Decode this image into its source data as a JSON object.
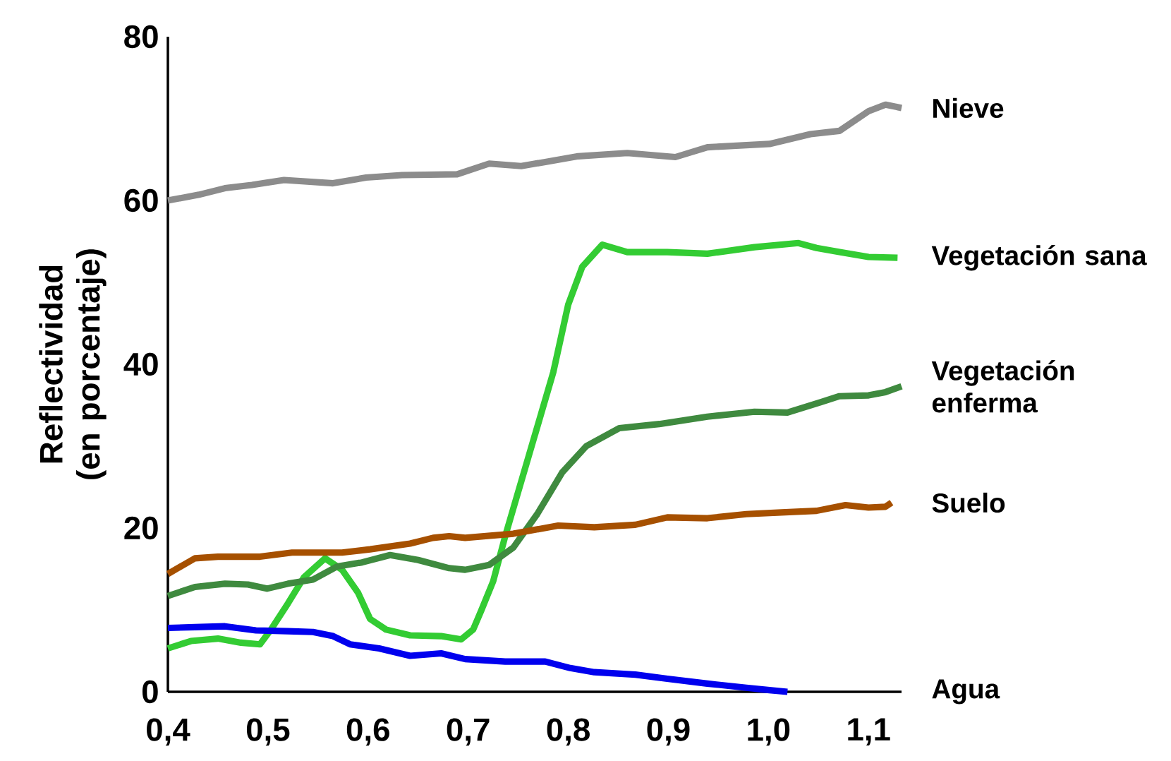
{
  "chart_data": {
    "type": "line",
    "ylabel": "Reflectividad (en porcentaje)",
    "xlim": [
      0.4,
      1.133
    ],
    "ylim": [
      0,
      80
    ],
    "xticks": [
      {
        "value": 0.4,
        "label": "0,4"
      },
      {
        "value": 0.5,
        "label": "0,5"
      },
      {
        "value": 0.6,
        "label": "0,6"
      },
      {
        "value": 0.7,
        "label": "0,7"
      },
      {
        "value": 0.8,
        "label": "0,8"
      },
      {
        "value": 0.9,
        "label": "0,9"
      },
      {
        "value": 1.0,
        "label": "1,0"
      },
      {
        "value": 1.1,
        "label": "1,1"
      }
    ],
    "yticks": [
      0,
      20,
      40,
      60,
      80
    ],
    "series": [
      {
        "name": "Nieve",
        "color": "#8c8c8c",
        "x": [
          0.4,
          0.431,
          0.457,
          0.484,
          0.516,
          0.565,
          0.598,
          0.634,
          0.689,
          0.721,
          0.753,
          0.777,
          0.81,
          0.859,
          0.907,
          0.939,
          1.001,
          1.042,
          1.071,
          1.1,
          1.117,
          1.133
        ],
        "values": [
          60,
          60.7,
          61.5,
          61.9,
          62.5,
          62.1,
          62.8,
          63.1,
          63.2,
          64.5,
          64.2,
          64.7,
          65.4,
          65.8,
          65.3,
          66.5,
          66.9,
          68.1,
          68.5,
          70.9,
          71.7,
          71.3
        ]
      },
      {
        "name": "Vegetación sana",
        "color": "#33cc33",
        "x": [
          0.4,
          0.423,
          0.45,
          0.473,
          0.492,
          0.503,
          0.52,
          0.536,
          0.557,
          0.574,
          0.59,
          0.602,
          0.618,
          0.642,
          0.673,
          0.693,
          0.705,
          0.713,
          0.725,
          0.737,
          0.761,
          0.785,
          0.8,
          0.814,
          0.834,
          0.859,
          0.899,
          0.939,
          0.986,
          1.03,
          1.048,
          1.071,
          1.1,
          1.129
        ],
        "values": [
          5.3,
          6.2,
          6.5,
          6.0,
          5.8,
          7.6,
          10.8,
          14,
          16.3,
          14.9,
          12.1,
          8.9,
          7.6,
          6.9,
          6.8,
          6.4,
          7.6,
          9.9,
          13.5,
          19,
          29,
          39,
          47.3,
          51.9,
          54.6,
          53.7,
          53.7,
          53.5,
          54.3,
          54.8,
          54.2,
          53.7,
          53.1,
          53.0
        ]
      },
      {
        "name": "Vegetación enferma",
        "color": "#3f8a3f",
        "x": [
          0.4,
          0.427,
          0.457,
          0.48,
          0.499,
          0.52,
          0.545,
          0.569,
          0.594,
          0.622,
          0.65,
          0.681,
          0.697,
          0.721,
          0.745,
          0.769,
          0.794,
          0.818,
          0.851,
          0.891,
          0.939,
          0.986,
          1.019,
          1.053,
          1.071,
          1.1,
          1.117,
          1.133
        ],
        "values": [
          11.7,
          12.8,
          13.2,
          13.1,
          12.6,
          13.2,
          13.7,
          15.3,
          15.8,
          16.7,
          16.1,
          15.1,
          14.9,
          15.5,
          17.6,
          21.7,
          26.8,
          30,
          32.2,
          32.7,
          33.6,
          34.2,
          34.1,
          35.4,
          36.1,
          36.2,
          36.6,
          37.3
        ]
      },
      {
        "name": "Suelo",
        "color": "#a65000",
        "x": [
          0.4,
          0.427,
          0.45,
          0.492,
          0.524,
          0.574,
          0.602,
          0.642,
          0.665,
          0.681,
          0.697,
          0.745,
          0.79,
          0.826,
          0.867,
          0.899,
          0.939,
          0.978,
          1.013,
          1.048,
          1.077,
          1.1,
          1.117,
          1.123
        ],
        "values": [
          14.4,
          16.3,
          16.5,
          16.5,
          17.0,
          17.0,
          17.4,
          18.1,
          18.8,
          19.0,
          18.8,
          19.3,
          20.3,
          20.1,
          20.4,
          21.3,
          21.2,
          21.7,
          21.9,
          22.1,
          22.8,
          22.5,
          22.6,
          23.1
        ]
      },
      {
        "name": "Agua",
        "color": "#0000ee",
        "x": [
          0.4,
          0.427,
          0.457,
          0.488,
          0.52,
          0.545,
          0.565,
          0.582,
          0.611,
          0.642,
          0.673,
          0.697,
          0.737,
          0.777,
          0.802,
          0.826,
          0.867,
          0.899,
          0.939,
          0.978,
          1.001,
          1.019
        ],
        "values": [
          7.8,
          7.9,
          8.0,
          7.5,
          7.4,
          7.3,
          6.8,
          5.8,
          5.3,
          4.4,
          4.7,
          4.0,
          3.7,
          3.7,
          2.9,
          2.4,
          2.1,
          1.6,
          1.0,
          0.5,
          0.2,
          0
        ]
      }
    ]
  }
}
